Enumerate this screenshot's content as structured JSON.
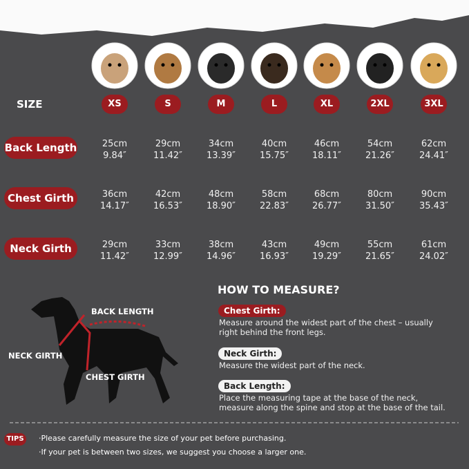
{
  "size_label": "SIZE",
  "sizes": [
    "XS",
    "S",
    "M",
    "L",
    "XL",
    "2XL",
    "3XL"
  ],
  "rows": [
    {
      "label": "Back Length",
      "cm": [
        "25cm",
        "29cm",
        "34cm",
        "40cm",
        "46cm",
        "54cm",
        "62cm"
      ],
      "inch": [
        "9.84″",
        "11.42″",
        "13.39″",
        "15.75″",
        "18.11″",
        "21.26″",
        "24.41″"
      ]
    },
    {
      "label": "Chest Girth",
      "cm": [
        "36cm",
        "42cm",
        "48cm",
        "58cm",
        "68cm",
        "80cm",
        "90cm"
      ],
      "inch": [
        "14.17″",
        "16.53″",
        "18.90″",
        "22.83″",
        "26.77″",
        "31.50″",
        "35.43″"
      ]
    },
    {
      "label": "Neck Girth",
      "cm": [
        "29cm",
        "33cm",
        "38cm",
        "43cm",
        "49cm",
        "55cm",
        "61cm"
      ],
      "inch": [
        "11.42″",
        "12.99″",
        "14.96″",
        "16.93″",
        "19.29″",
        "21.65″",
        "24.02″"
      ]
    }
  ],
  "how_to": {
    "title": "HOW TO MEASURE?",
    "items": [
      {
        "label": "Chest Girth:",
        "text": "Measure around the widest part of the chest – usually right behind the front legs."
      },
      {
        "label": "Neck Girth:",
        "text": "Measure the widest part of the neck."
      },
      {
        "label": "Back Length:",
        "text": "Place the measuring tape at the base of the neck, measure along the spine and stop at the base of the tail."
      }
    ]
  },
  "diagram": {
    "back": "BACK LENGTH",
    "neck": "NECK GIRTH",
    "chest": "CHEST GIRTH"
  },
  "tips": {
    "label": "TIPS",
    "items": [
      "·Please carefully measure the size of your pet before purchasing.",
      "·If your pet is between two sizes, we suggest you choose a larger one."
    ]
  }
}
